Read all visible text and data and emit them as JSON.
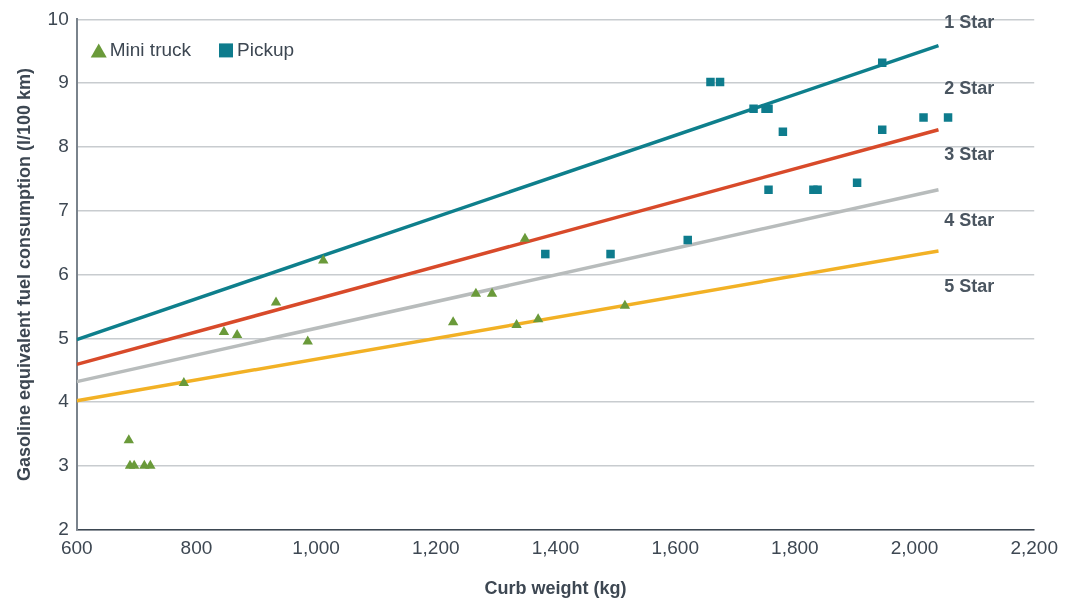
{
  "chart_data": {
    "type": "scatter",
    "xlabel": "Curb weight (kg)",
    "ylabel": "Gasoline equivalent fuel consumption (l/100 km)",
    "xlim": [
      600,
      2200
    ],
    "xticks": [
      {
        "value": 600,
        "label": "600"
      },
      {
        "value": 800,
        "label": "800"
      },
      {
        "value": 1000,
        "label": "1,000"
      },
      {
        "value": 1200,
        "label": "1,200"
      },
      {
        "value": 1400,
        "label": "1,400"
      },
      {
        "value": 1600,
        "label": "1,600"
      },
      {
        "value": 1800,
        "label": "1,800"
      },
      {
        "value": 2000,
        "label": "2,000"
      },
      {
        "value": 2200,
        "label": "2,200"
      }
    ],
    "ylim": [
      2,
      10
    ],
    "yticks": [
      2,
      3,
      4,
      5,
      6,
      7,
      8,
      9,
      10
    ],
    "grid": "y",
    "legend": "top left",
    "series": [
      {
        "name": "Mini truck",
        "type": "scatter",
        "marker": "triangle",
        "color": "#6a9a3a",
        "x": [
          687,
          689,
          696,
          713,
          723,
          779,
          846,
          868,
          933,
          986,
          1012,
          1229,
          1267,
          1294,
          1335,
          1349,
          1371,
          1516
        ],
        "values": [
          3.4,
          3.0,
          3.0,
          3.0,
          3.0,
          4.3,
          5.1,
          5.05,
          5.56,
          4.95,
          6.22,
          5.25,
          5.7,
          5.7,
          5.21,
          6.56,
          5.3,
          5.51
        ]
      },
      {
        "name": "Pickup",
        "type": "scatter",
        "marker": "square",
        "color": "#0e7c8d",
        "x": [
          1383,
          1492,
          1621,
          1659,
          1675,
          1731,
          1751,
          1756,
          1756,
          1780,
          1831,
          1838,
          1904,
          1946,
          1946,
          2015,
          2056
        ],
        "values": [
          6.32,
          6.32,
          6.54,
          9.02,
          9.02,
          8.6,
          8.6,
          8.6,
          7.33,
          8.24,
          7.33,
          7.33,
          7.44,
          9.32,
          8.27,
          8.46,
          8.46
        ]
      },
      {
        "type": "line",
        "marker": "none",
        "color": "#0e7f8c",
        "x": [
          600,
          2040
        ],
        "values": [
          4.98,
          9.59
        ]
      },
      {
        "type": "line",
        "marker": "none",
        "color": "#d84a2a",
        "x": [
          600,
          2040
        ],
        "values": [
          4.59,
          8.27
        ]
      },
      {
        "type": "line",
        "marker": "none",
        "color": "#b8bcbc",
        "x": [
          600,
          2040
        ],
        "values": [
          4.32,
          7.33
        ]
      },
      {
        "type": "line",
        "marker": "none",
        "color": "#f2b125",
        "x": [
          600,
          2040
        ],
        "values": [
          4.02,
          6.37
        ]
      }
    ],
    "annotations": [
      "1 Star",
      "2 Star",
      "3 Star",
      "4 Star",
      "5 Star"
    ]
  }
}
